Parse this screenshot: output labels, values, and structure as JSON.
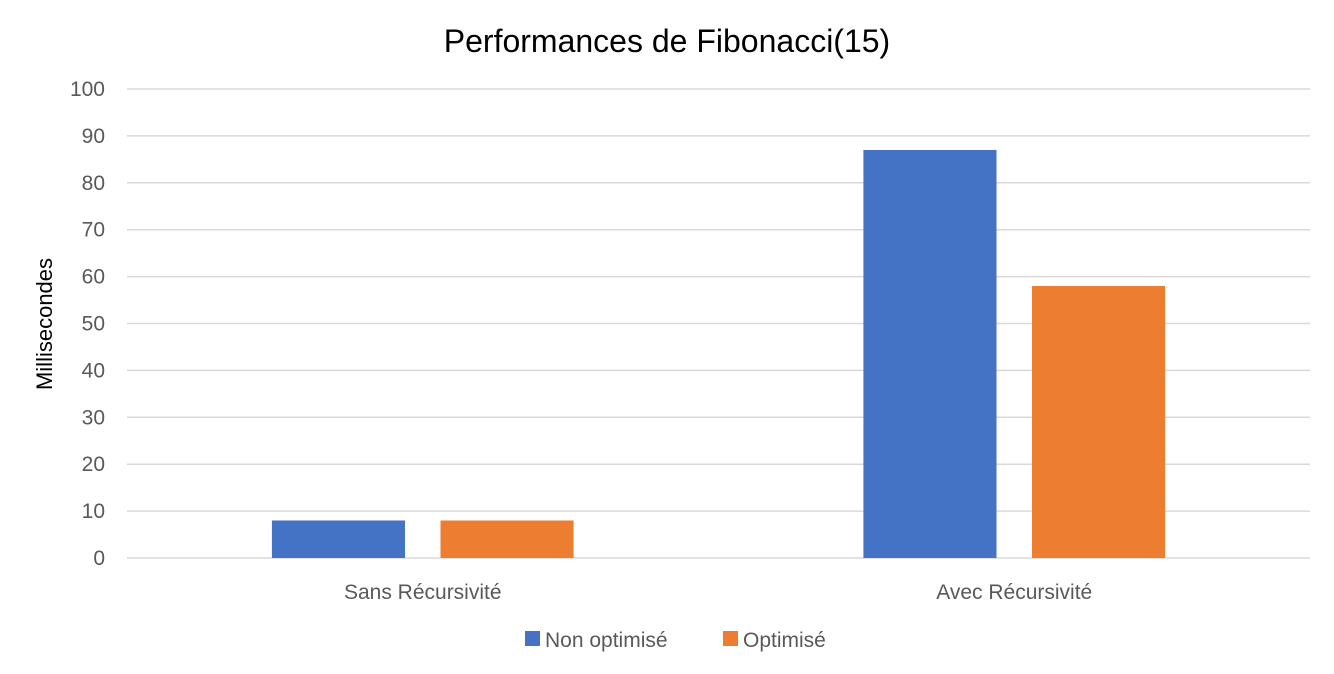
{
  "chart_data": {
    "type": "bar",
    "title": "Performances de Fibonacci(15)",
    "xlabel": "",
    "ylabel": "Millisecondes",
    "categories": [
      "Sans Récursivité",
      "Avec Récursivité"
    ],
    "series": [
      {
        "name": "Non optimisé",
        "values": [
          8,
          87
        ],
        "color": "#4472c4"
      },
      {
        "name": "Optimisé",
        "values": [
          8,
          58
        ],
        "color": "#ed7d31"
      }
    ],
    "ylim": [
      0,
      100
    ],
    "yticks": [
      0,
      10,
      20,
      30,
      40,
      50,
      60,
      70,
      80,
      90,
      100
    ],
    "grid": true,
    "legend_position": "bottom"
  }
}
